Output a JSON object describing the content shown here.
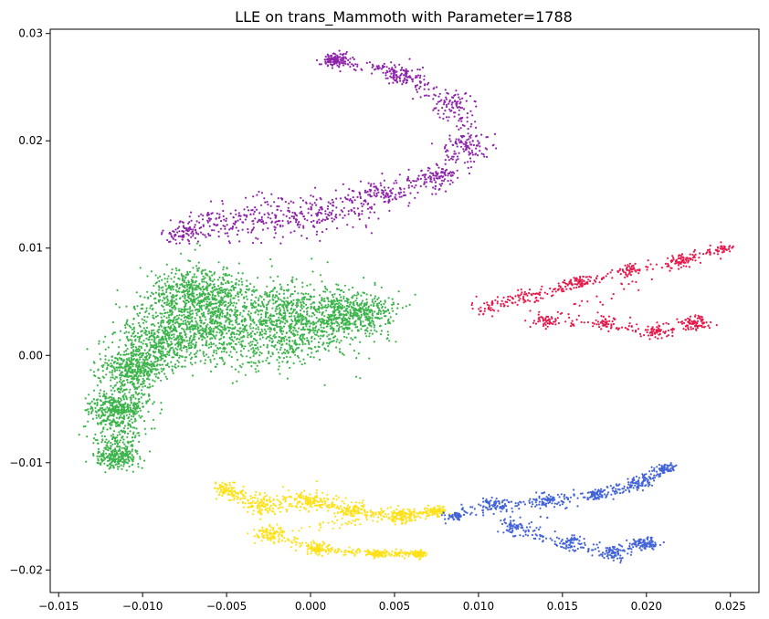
{
  "chart_data": {
    "type": "scatter",
    "title": "LLE on trans_Mammoth with Parameter=1788",
    "xlabel": "",
    "ylabel": "",
    "xlim": [
      -0.0155,
      0.0267
    ],
    "ylim": [
      -0.0221,
      0.0304
    ],
    "x_ticks": [
      -0.015,
      -0.01,
      -0.005,
      0.0,
      0.005,
      0.01,
      0.015,
      0.02,
      0.025
    ],
    "x_tick_labels": [
      "−0.015",
      "−0.010",
      "−0.005",
      "0.000",
      "0.005",
      "0.010",
      "0.015",
      "0.020",
      "0.025"
    ],
    "y_ticks": [
      -0.02,
      -0.01,
      0.0,
      0.01,
      0.02,
      0.03
    ],
    "y_tick_labels": [
      "−0.02",
      "−0.01",
      "0.00",
      "0.01",
      "0.02",
      "0.03"
    ],
    "grid": false,
    "legend": "none",
    "series": [
      {
        "color": "#8e24aa",
        "point_count": 1200,
        "shape": [
          {
            "x": -0.0075,
            "y": 0.0115,
            "spread": 0.0012
          },
          {
            "x": -0.0045,
            "y": 0.0125,
            "spread": 0.002
          },
          {
            "x": -0.0015,
            "y": 0.013,
            "spread": 0.0022
          },
          {
            "x": 0.0015,
            "y": 0.0135,
            "spread": 0.002
          },
          {
            "x": 0.0045,
            "y": 0.015,
            "spread": 0.0015
          },
          {
            "x": 0.0075,
            "y": 0.0165,
            "spread": 0.0012
          },
          {
            "x": 0.0095,
            "y": 0.0195,
            "spread": 0.0012
          },
          {
            "x": 0.0085,
            "y": 0.0235,
            "spread": 0.0012
          },
          {
            "x": 0.0055,
            "y": 0.0262,
            "spread": 0.001
          },
          {
            "x": 0.0015,
            "y": 0.0275,
            "spread": 0.0007
          }
        ]
      },
      {
        "color": "#3cb44b",
        "point_count": 4200,
        "shape": [
          {
            "x": -0.0115,
            "y": -0.0095,
            "spread": 0.0012
          },
          {
            "x": -0.0115,
            "y": -0.005,
            "spread": 0.0015
          },
          {
            "x": -0.0105,
            "y": -0.001,
            "spread": 0.0018
          },
          {
            "x": -0.0085,
            "y": 0.0015,
            "spread": 0.0025
          },
          {
            "x": -0.0065,
            "y": 0.0035,
            "spread": 0.0035
          },
          {
            "x": -0.003,
            "y": 0.002,
            "spread": 0.004
          },
          {
            "x": 0.0,
            "y": 0.003,
            "spread": 0.0035
          },
          {
            "x": 0.003,
            "y": 0.004,
            "spread": 0.002
          },
          {
            "x": -0.007,
            "y": 0.006,
            "spread": 0.0025
          }
        ]
      },
      {
        "color": "#e6194b",
        "point_count": 700,
        "shape": [
          {
            "x": 0.0105,
            "y": 0.0045,
            "spread": 0.001
          },
          {
            "x": 0.013,
            "y": 0.0055,
            "spread": 0.0008
          },
          {
            "x": 0.016,
            "y": 0.0068,
            "spread": 0.0006
          },
          {
            "x": 0.019,
            "y": 0.008,
            "spread": 0.0006
          },
          {
            "x": 0.022,
            "y": 0.0088,
            "spread": 0.0006
          },
          {
            "x": 0.0245,
            "y": 0.01,
            "spread": 0.0005
          },
          {
            "x": 0.014,
            "y": 0.0032,
            "spread": 0.0008
          },
          {
            "x": 0.0175,
            "y": 0.003,
            "spread": 0.0007
          },
          {
            "x": 0.0205,
            "y": 0.0022,
            "spread": 0.0007
          },
          {
            "x": 0.023,
            "y": 0.003,
            "spread": 0.0007
          }
        ]
      },
      {
        "color": "#ffe119",
        "point_count": 1300,
        "shape": [
          {
            "x": -0.005,
            "y": -0.0125,
            "spread": 0.0007
          },
          {
            "x": -0.003,
            "y": -0.014,
            "spread": 0.001
          },
          {
            "x": 0.0,
            "y": -0.0135,
            "spread": 0.001
          },
          {
            "x": 0.0025,
            "y": -0.0145,
            "spread": 0.0008
          },
          {
            "x": 0.0055,
            "y": -0.015,
            "spread": 0.0007
          },
          {
            "x": 0.0075,
            "y": -0.0145,
            "spread": 0.0005
          },
          {
            "x": -0.0025,
            "y": -0.0165,
            "spread": 0.0008
          },
          {
            "x": 0.0005,
            "y": -0.018,
            "spread": 0.0006
          },
          {
            "x": 0.004,
            "y": -0.0185,
            "spread": 0.0004
          },
          {
            "x": 0.0065,
            "y": -0.0185,
            "spread": 0.0003
          }
        ]
      },
      {
        "color": "#4363d8",
        "point_count": 900,
        "shape": [
          {
            "x": 0.0085,
            "y": -0.015,
            "spread": 0.0006
          },
          {
            "x": 0.011,
            "y": -0.014,
            "spread": 0.0008
          },
          {
            "x": 0.014,
            "y": -0.0135,
            "spread": 0.0007
          },
          {
            "x": 0.017,
            "y": -0.013,
            "spread": 0.0006
          },
          {
            "x": 0.0195,
            "y": -0.012,
            "spread": 0.0006
          },
          {
            "x": 0.0212,
            "y": -0.0105,
            "spread": 0.0005
          },
          {
            "x": 0.012,
            "y": -0.016,
            "spread": 0.0008
          },
          {
            "x": 0.0155,
            "y": -0.0175,
            "spread": 0.0008
          },
          {
            "x": 0.018,
            "y": -0.0185,
            "spread": 0.0008
          },
          {
            "x": 0.02,
            "y": -0.0175,
            "spread": 0.0007
          }
        ]
      }
    ]
  }
}
